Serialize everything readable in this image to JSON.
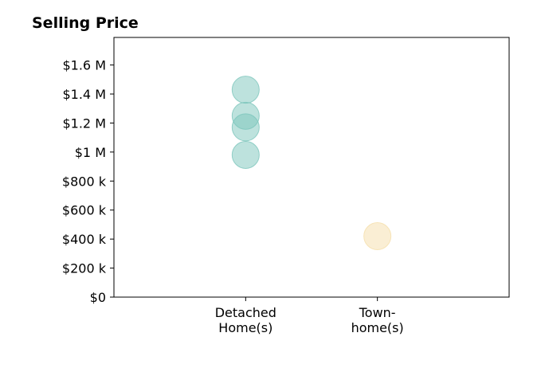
{
  "chart_data": {
    "type": "scatter",
    "title": "Selling Price",
    "xlabel": "",
    "ylabel": "",
    "categories": [
      [
        "Detached",
        "Home(s)"
      ],
      [
        "Town-",
        "home(s)"
      ]
    ],
    "y_ticks": [
      {
        "value": 0,
        "label": "$0"
      },
      {
        "value": 200000,
        "label": "$200 k"
      },
      {
        "value": 400000,
        "label": "$400 k"
      },
      {
        "value": 600000,
        "label": "$600 k"
      },
      {
        "value": 800000,
        "label": "$800 k"
      },
      {
        "value": 1000000,
        "label": "$1 M"
      },
      {
        "value": 1200000,
        "label": "$1.2 M"
      },
      {
        "value": 1400000,
        "label": "$1.4 M"
      },
      {
        "value": 1600000,
        "label": "$1.6 M"
      }
    ],
    "ylim": [
      0,
      1790000
    ],
    "xlim": [
      -1,
      2
    ],
    "grid": false,
    "legend": "none",
    "points": [
      {
        "category": 0,
        "y": 1430000
      },
      {
        "category": 0,
        "y": 1250000
      },
      {
        "category": 0,
        "y": 1170000
      },
      {
        "category": 0,
        "y": 980000
      },
      {
        "category": 1,
        "y": 420000
      }
    ],
    "colors": [
      "#7cc5bb",
      "#f5deaa"
    ],
    "point_opacity": 0.5
  }
}
